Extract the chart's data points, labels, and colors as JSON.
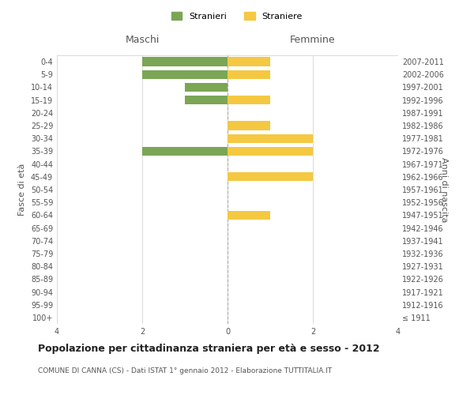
{
  "age_groups": [
    "100+",
    "95-99",
    "90-94",
    "85-89",
    "80-84",
    "75-79",
    "70-74",
    "65-69",
    "60-64",
    "55-59",
    "50-54",
    "45-49",
    "40-44",
    "35-39",
    "30-34",
    "25-29",
    "20-24",
    "15-19",
    "10-14",
    "5-9",
    "0-4"
  ],
  "birth_years": [
    "≤ 1911",
    "1912-1916",
    "1917-1921",
    "1922-1926",
    "1927-1931",
    "1932-1936",
    "1937-1941",
    "1942-1946",
    "1947-1951",
    "1952-1956",
    "1957-1961",
    "1962-1966",
    "1967-1971",
    "1972-1976",
    "1977-1981",
    "1982-1986",
    "1987-1991",
    "1992-1996",
    "1997-2001",
    "2002-2006",
    "2007-2011"
  ],
  "maschi": [
    0,
    0,
    0,
    0,
    0,
    0,
    0,
    0,
    0,
    0,
    0,
    0,
    0,
    2,
    0,
    0,
    0,
    1,
    1,
    2,
    2
  ],
  "femmine": [
    0,
    0,
    0,
    0,
    0,
    0,
    0,
    0,
    1,
    0,
    0,
    2,
    0,
    2,
    2,
    1,
    0,
    1,
    0,
    1,
    1
  ],
  "maschi_color": "#7aa655",
  "femmine_color": "#f5c842",
  "title": "Popolazione per cittadinanza straniera per età e sesso - 2012",
  "subtitle": "COMUNE DI CANNA (CS) - Dati ISTAT 1° gennaio 2012 - Elaborazione TUTTITALIA.IT",
  "xlabel_left": "Maschi",
  "xlabel_right": "Femmine",
  "ylabel_left": "Fasce di età",
  "ylabel_right": "Anni di nascita",
  "legend_stranieri": "Stranieri",
  "legend_straniere": "Straniere",
  "xlim": 4,
  "background_color": "#ffffff",
  "grid_color": "#cccccc",
  "bar_height": 0.7
}
